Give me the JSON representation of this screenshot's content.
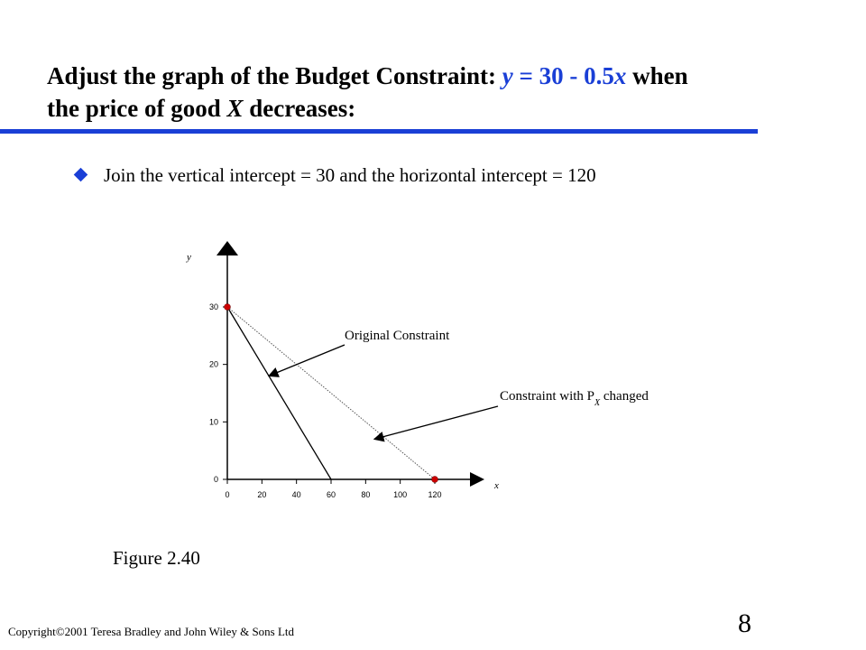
{
  "slide": {
    "title_pre": "Adjust the graph of the Budget Constraint: ",
    "equation_y": "y",
    "equation_mid": " =  30 - 0.5",
    "equation_x": "x",
    "title_post1": "  when",
    "title_line2_pre": "the price of good ",
    "title_good": "X",
    "title_line2_post": "  decreases:",
    "bullet_text": "Join the vertical intercept = 30 and the horizontal intercept = 120",
    "figure_label": "Figure 2.40",
    "copyright": "Copyright©2001 Teresa  Bradley and John Wiley  & Sons Ltd",
    "page_number": "8",
    "accent_color": "#1a3fd6",
    "bullet_icon": "diamond-bullet-icon"
  },
  "chart_data": {
    "type": "line",
    "xlabel": "x",
    "ylabel": "y",
    "xlim": [
      0,
      120
    ],
    "ylim": [
      0,
      30
    ],
    "x_ticks": [
      0,
      20,
      40,
      60,
      80,
      100,
      120
    ],
    "y_ticks": [
      0,
      10,
      20,
      30
    ],
    "series": [
      {
        "name": "Original Constraint",
        "style": "solid",
        "x": [
          0,
          60
        ],
        "y": [
          30,
          0
        ]
      },
      {
        "name": "Constraint with P",
        "name_subscript": "X",
        "name_suffix": " changed",
        "style": "dotted",
        "x": [
          0,
          120
        ],
        "y": [
          30,
          0
        ]
      }
    ],
    "highlighted_points": [
      {
        "x": 0,
        "y": 30
      },
      {
        "x": 120,
        "y": 0
      }
    ],
    "annotations": [
      {
        "text": "Original Constraint",
        "points_to": {
          "x": 24,
          "y": 18
        }
      },
      {
        "text": "Constraint with P",
        "subscript": "X",
        "suffix": " changed",
        "points_to": {
          "x": 85,
          "y": 7
        }
      }
    ],
    "point_color": "#cc0000",
    "grid": false
  }
}
